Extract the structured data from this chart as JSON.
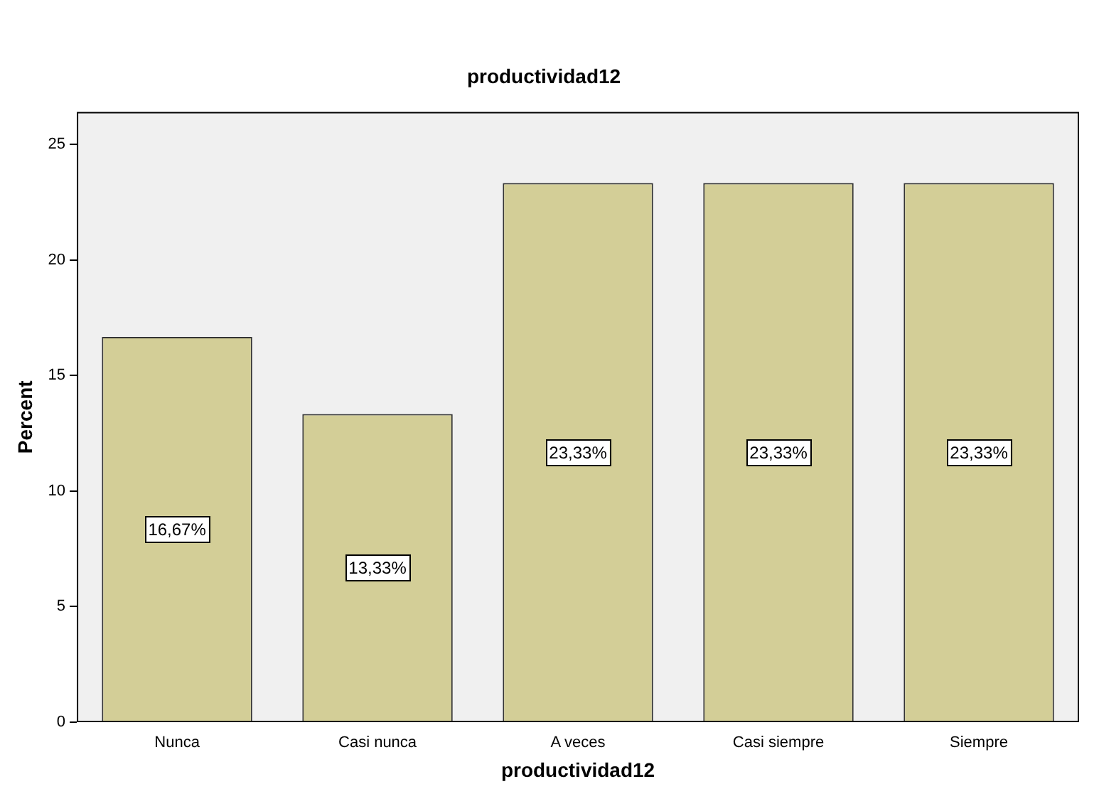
{
  "chart_data": {
    "type": "bar",
    "title": "productividad12",
    "xlabel": "productividad12",
    "ylabel": "Percent",
    "categories": [
      "Nunca",
      "Casi nunca",
      "A veces",
      "Casi siempre",
      "Siempre"
    ],
    "values": [
      16.67,
      13.33,
      23.33,
      23.33,
      23.33
    ],
    "value_labels": [
      "16,67%",
      "13,33%",
      "23,33%",
      "23,33%",
      "23,33%"
    ],
    "color": "#d3ce97",
    "ylim": [
      0,
      26.4
    ],
    "yticks": [
      0,
      5,
      10,
      15,
      20,
      25
    ],
    "grid": false,
    "legend": false
  }
}
